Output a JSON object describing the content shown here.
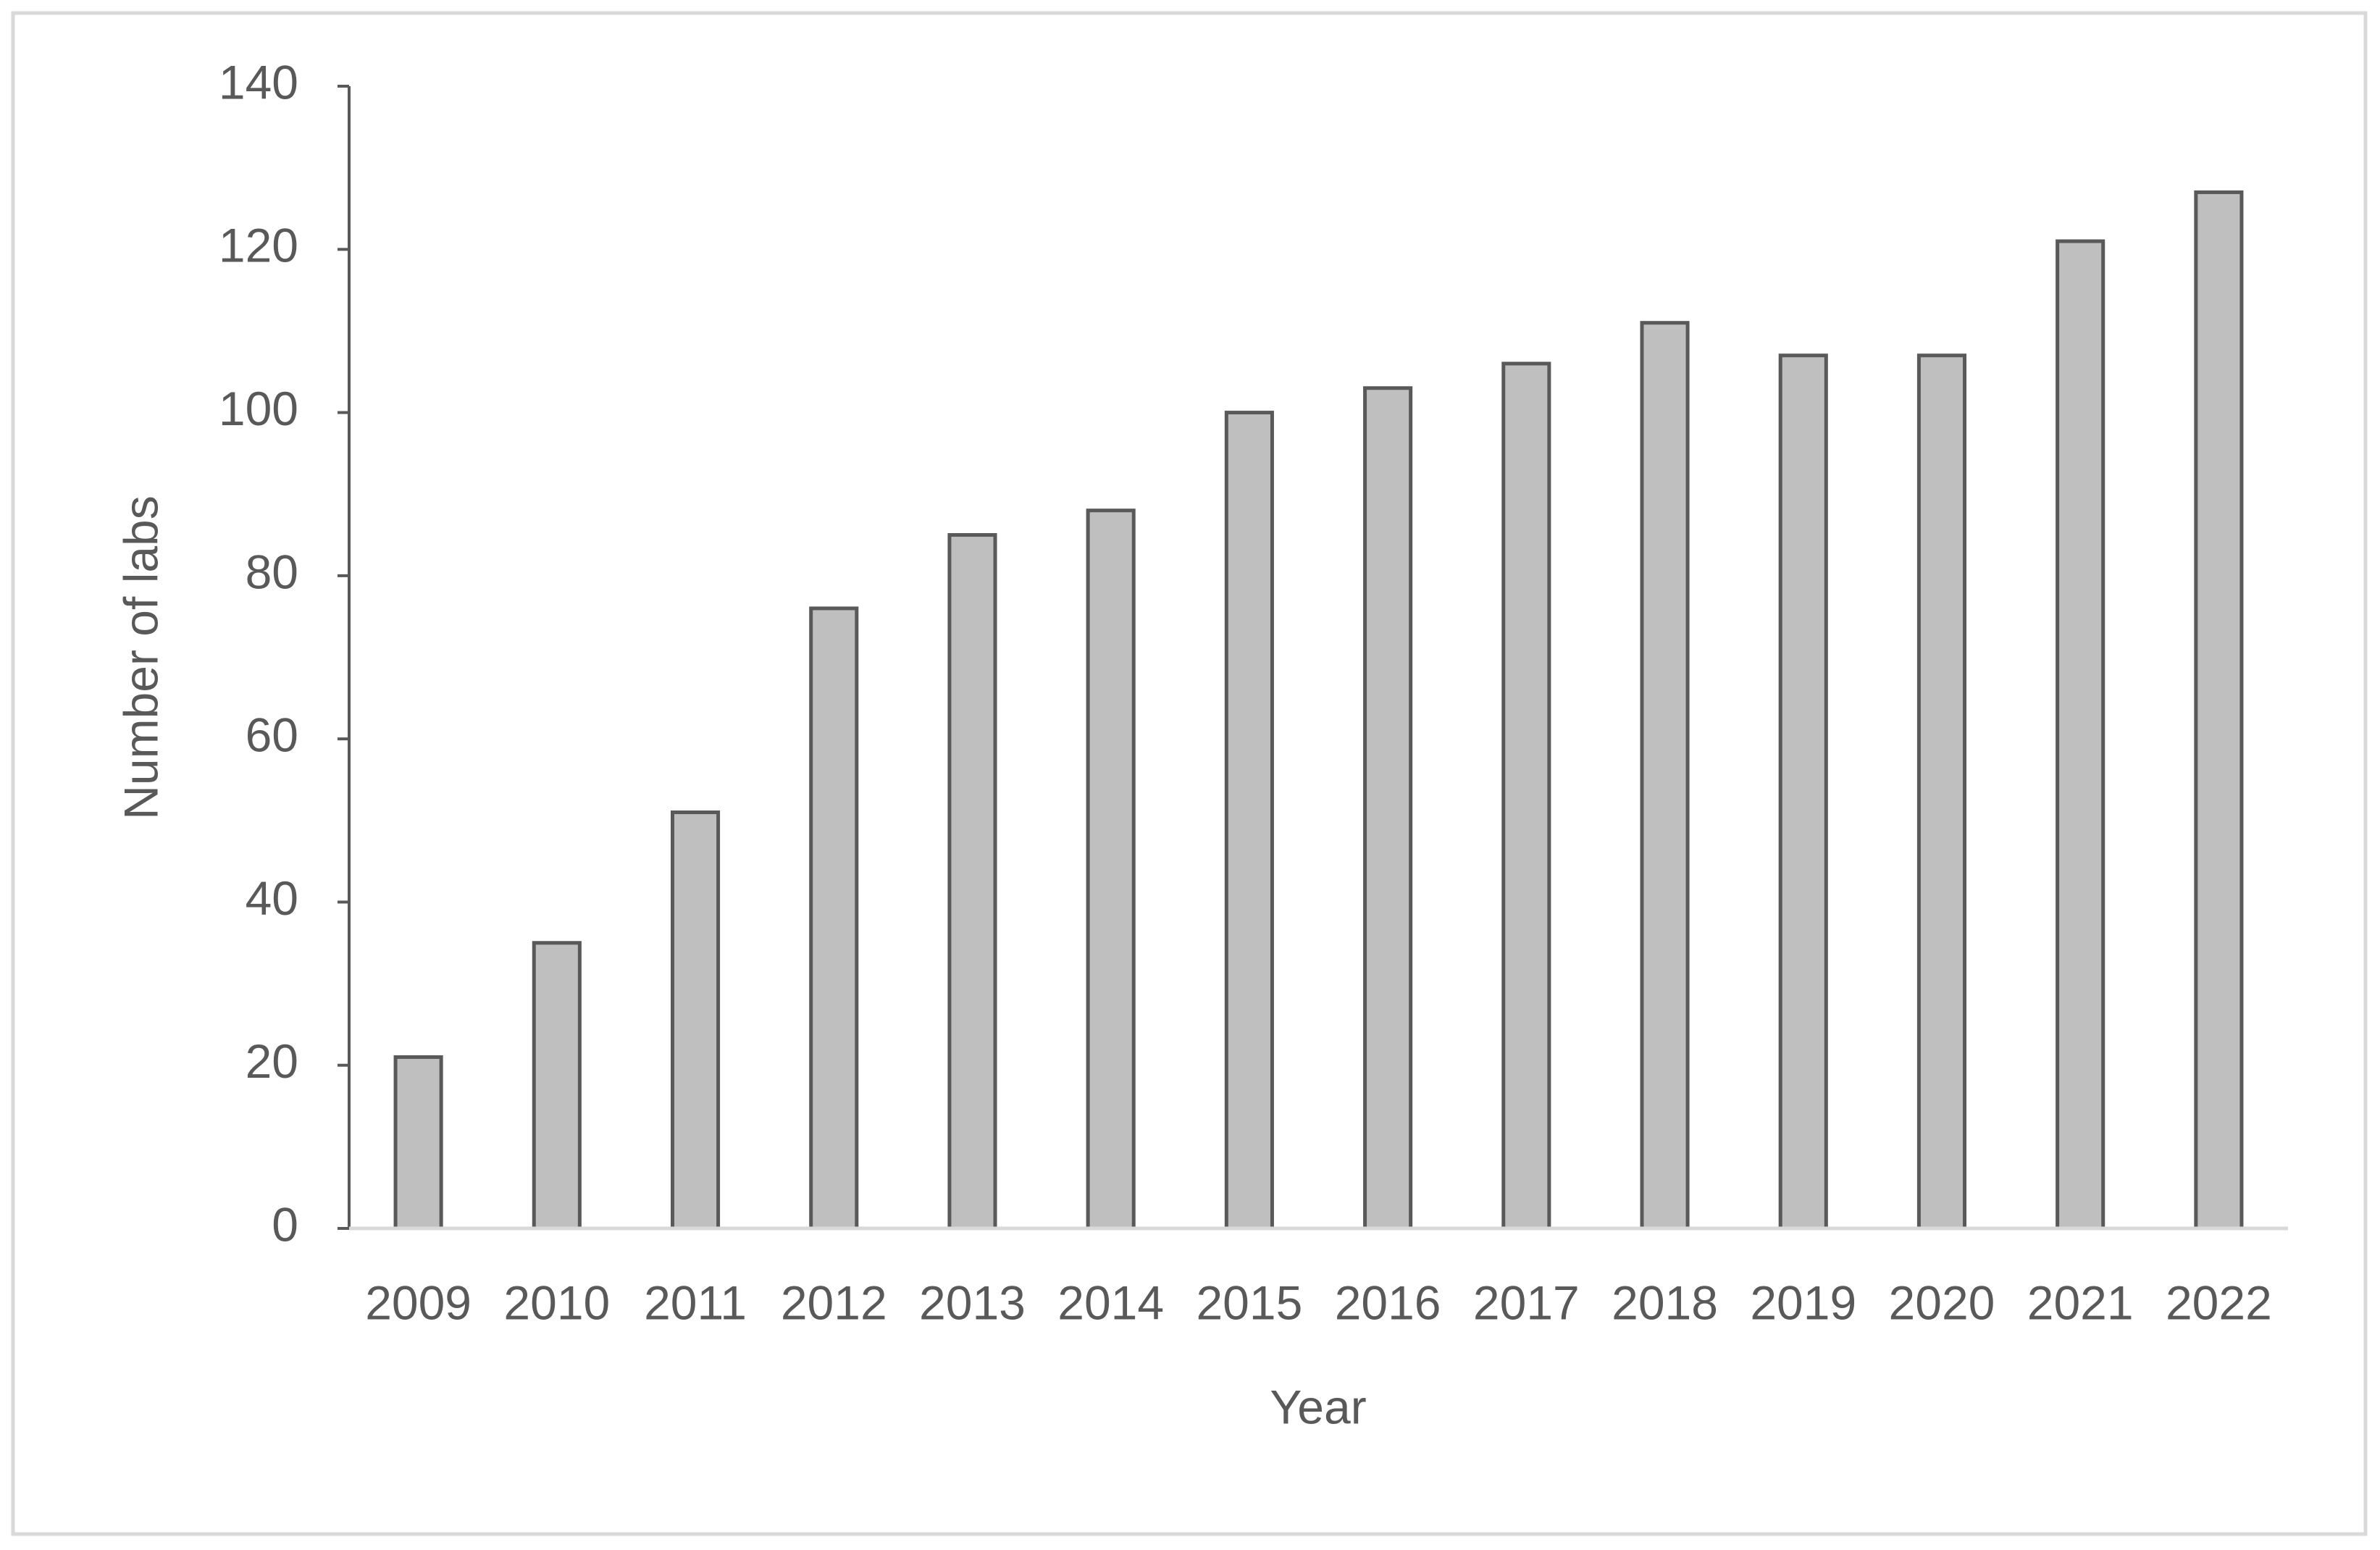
{
  "chart_data": {
    "type": "bar",
    "x_label": "Year",
    "y_label": "Number of labs",
    "categories": [
      "2009",
      "2010",
      "2011",
      "2012",
      "2013",
      "2014",
      "2015",
      "2016",
      "2017",
      "2018",
      "2019",
      "2020",
      "2021",
      "2022"
    ],
    "values": [
      21,
      35,
      51,
      76,
      85,
      88,
      100,
      103,
      106,
      111,
      107,
      107,
      121,
      127
    ],
    "color": "#bfbfbf",
    "ylim": [
      0,
      140
    ],
    "yticks": [
      0,
      20,
      40,
      60,
      80,
      100,
      120,
      140
    ],
    "grid": false
  }
}
